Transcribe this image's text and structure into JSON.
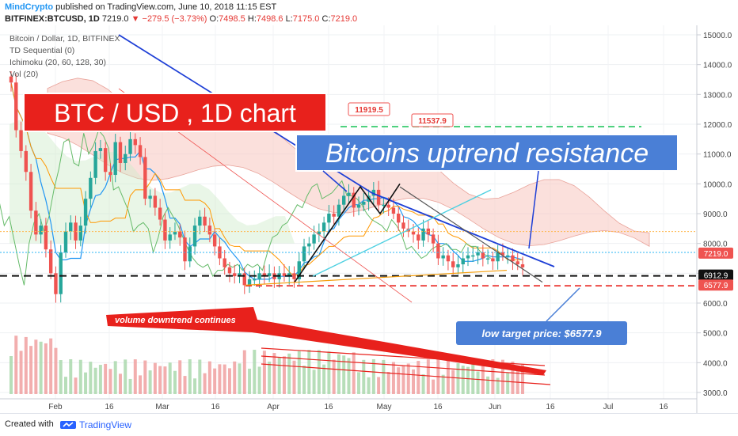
{
  "header": {
    "author": "MindCrypto",
    "published_text": "published on TradingView.com, June 10, 2018 11:15 EST",
    "symbol": "BITFINEX:BTCUSD, 1D",
    "last": "7219.0",
    "change": "−279.5 (−3.73%)",
    "ohlc": {
      "o_label": "O:",
      "o": "7498.5",
      "h_label": "H:",
      "h": "7498.6",
      "l_label": "L:",
      "l": "7175.0",
      "c_label": "C:",
      "c": "7219.0"
    }
  },
  "legend": {
    "title": "Bitcoin / Dollar, 1D, BITFINEX",
    "indicators": [
      "TD Sequential (0)",
      "Ichimoku (20, 60, 128, 30)",
      "Vol (20)"
    ]
  },
  "annotations": {
    "main_title": "BTC / USD , 1D chart",
    "resistance": "Bitcoins uptrend resistance",
    "volume_note": "volume downtrend continues",
    "target_note": "low target price: $6577.9",
    "level_high": "11919.5",
    "level_mid": "11537.9"
  },
  "price_labels": {
    "last": "7219.0",
    "level_a": "6912.9",
    "level_b": "6577.9"
  },
  "colors": {
    "up": "#26a69a",
    "down": "#ef5350",
    "cloud": "#f8c6c0",
    "resistance_line": "#1e3fd6",
    "annotation_red": "#e8211c",
    "annotation_blue": "#4a7fd6",
    "support_black": "#111111"
  },
  "chart_data": {
    "type": "candlestick",
    "symbol": "BTCUSD",
    "timeframe": "1D",
    "y_ticks": [
      "15000.0",
      "14000.0",
      "13000.0",
      "12000.0",
      "11000.0",
      "10000.0",
      "9000.0",
      "8000.0",
      "7000.0",
      "6000.0",
      "5000.0",
      "4000.0",
      "3000.0"
    ],
    "ylim": [
      2800,
      15100
    ],
    "x_ticks": [
      "Feb",
      "16",
      "Mar",
      "16",
      "Apr",
      "16",
      "May",
      "16",
      "Jun",
      "16",
      "Jul",
      "16"
    ],
    "close_series": [
      13400,
      11800,
      11100,
      10400,
      9100,
      8300,
      8600,
      7800,
      7000,
      6300,
      7700,
      8400,
      8700,
      8100,
      8600,
      9500,
      10200,
      11100,
      11200,
      10400,
      10300,
      11400,
      10700,
      11000,
      11500,
      11300,
      10900,
      9500,
      9600,
      9200,
      8800,
      8100,
      8300,
      8400,
      8200,
      7400,
      7900,
      8600,
      8900,
      8600,
      8300,
      7900,
      7500,
      7200,
      7000,
      6900,
      7000,
      6600,
      6800,
      6800,
      7000,
      6900,
      7000,
      6800,
      7000,
      6900,
      7000,
      6800,
      7400,
      7900,
      8000,
      8300,
      8400,
      8700,
      9000,
      8900,
      9300,
      9600,
      9700,
      9200,
      9300,
      9400,
      9600,
      9800,
      9300,
      9300,
      9200,
      9000,
      8700,
      8500,
      8400,
      8300,
      8100,
      8500,
      8300,
      8000,
      7500,
      7600,
      7400,
      7200,
      7300,
      7500,
      7600,
      7600,
      7700,
      7500,
      7500,
      7400,
      7700,
      7600,
      7600,
      7400,
      7300,
      7200
    ],
    "levels": {
      "resistance_top": 11919.5,
      "resistance_mid": 11537.9,
      "support": 6912.9,
      "target": 6577.9,
      "last": 7219.0
    }
  }
}
